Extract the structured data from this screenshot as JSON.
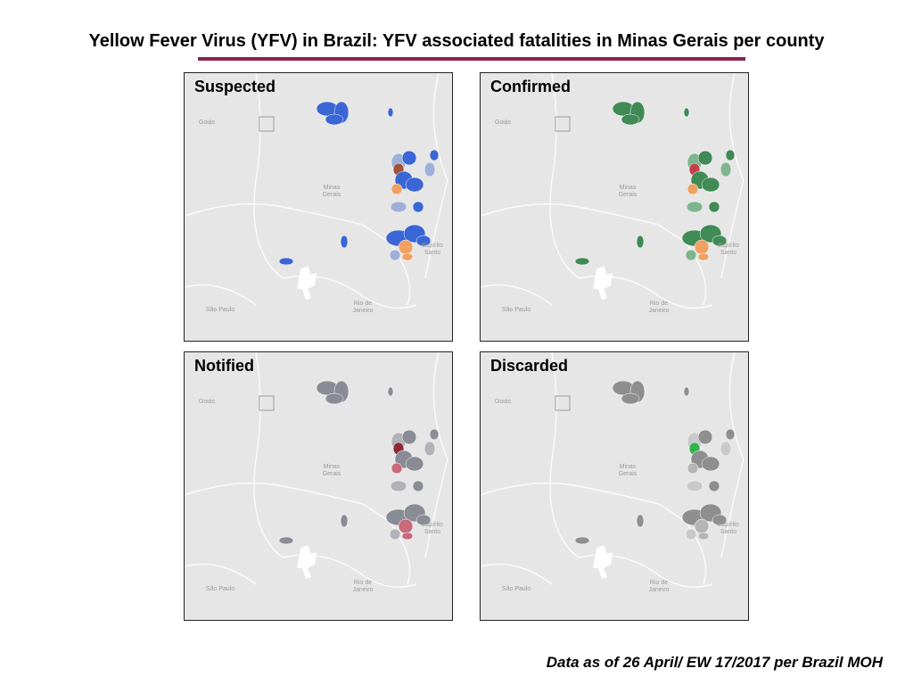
{
  "header": {
    "title": "Yellow Fever Virus (YFV) in Brazil: YFV associated fatalities in Minas Gerais per county"
  },
  "panels": [
    {
      "title": "Suspected"
    },
    {
      "title": "Confirmed"
    },
    {
      "title": "Notified"
    },
    {
      "title": "Discarded"
    }
  ],
  "map_labels": [
    "Goiás",
    "Minas Gerais",
    "Espírito Santo",
    "São Paulo",
    "Rio de Janeiro"
  ],
  "footer": {
    "note": "Data as of 26 April/ EW 17/2017 per Brazil MOH"
  }
}
